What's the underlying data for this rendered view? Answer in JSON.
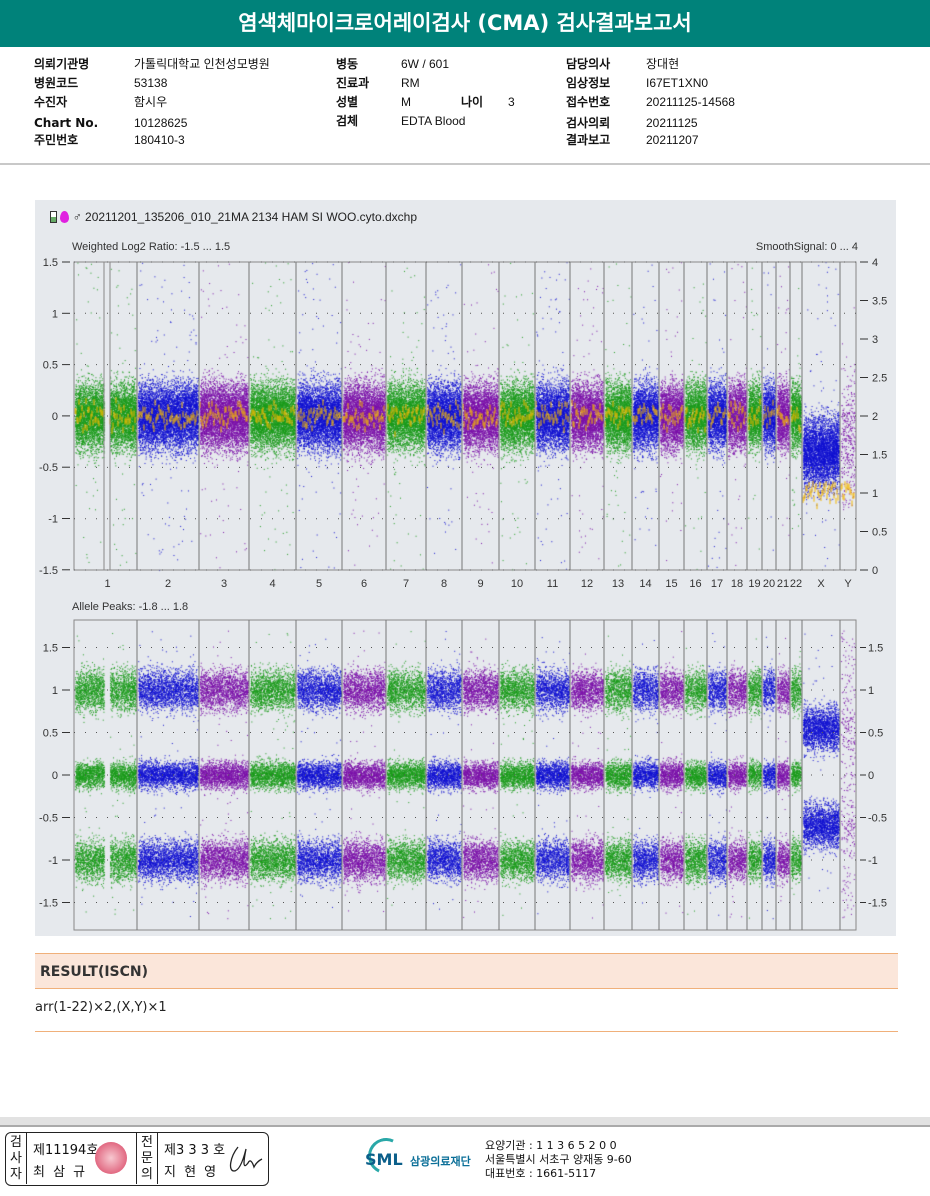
{
  "title": "염색체마이크로어레이검사 (CMA) 검사결과보고서",
  "info": {
    "col1": [
      {
        "k": "의뢰기관명",
        "v": "가톨릭대학교 인천성모병원"
      },
      {
        "k": "병원코드",
        "v": "53138"
      },
      {
        "k": "수진자",
        "v": "함시우"
      },
      {
        "k": "Chart No.",
        "v": "10128625"
      },
      {
        "k": "주민번호",
        "v": "180410-3"
      }
    ],
    "col2": [
      {
        "k": "병동",
        "v": "6W / 601"
      },
      {
        "k": "진료과",
        "v": "RM"
      },
      {
        "k": "성별",
        "v": "M"
      },
      {
        "k": "검체",
        "v": "EDTA Blood"
      }
    ],
    "age": {
      "k": "나이",
      "v": "3"
    },
    "col3": [
      {
        "k": "담당의사",
        "v": "장대현"
      },
      {
        "k": "임상정보",
        "v": "I67ET1XN0"
      },
      {
        "k": "접수번호",
        "v": "20211125-14568"
      },
      {
        "k": "검사의뢰",
        "v": "20211125"
      },
      {
        "k": "결과보고",
        "v": "20211207"
      }
    ]
  },
  "chart": {
    "filename": "20211201_135206_010_21MA 2134 HAM SI WOO.cyto.dxchp",
    "top_label": "Weighted Log2 Ratio: -1.5 ... 1.5",
    "top_right_label": "SmoothSignal: 0 ... 4",
    "top_left_ticks": [
      "1.5",
      "1",
      "0.5",
      "0",
      "-0.5",
      "-1",
      "-1.5"
    ],
    "top_right_ticks": [
      "4",
      "3.5",
      "3",
      "2.5",
      "2",
      "1.5",
      "1",
      "0.5",
      "0"
    ],
    "bottom_label": "Allele Peaks: -1.8 ... 1.8",
    "bottom_ticks": [
      "1.5",
      "1",
      "0.5",
      "0",
      "-0.5",
      "-1",
      "-1.5"
    ],
    "chromosomes": [
      "1",
      "2",
      "3",
      "4",
      "5",
      "6",
      "7",
      "8",
      "9",
      "10",
      "11",
      "12",
      "13",
      "14",
      "15",
      "16",
      "17",
      "18",
      "19",
      "20",
      "21",
      "22",
      "X",
      "Y"
    ],
    "colors": {
      "green": "#1a9a1a",
      "blue": "#1010d0",
      "purple": "#7a10a8",
      "smooth": "#f5b800"
    }
  },
  "result": {
    "heading": "RESULT(ISCN)",
    "value": "arr(1-22)×2,(X,Y)×1"
  },
  "footer": {
    "inspector_label": "검사자",
    "inspector_no": "제11194호",
    "inspector_name": "최 삼 규",
    "specialist_label": "전문의",
    "specialist_no": "제3 3 3 호",
    "specialist_name": "지 현 영",
    "logo": "SML",
    "org": "삼광의료재단",
    "line1": "요양기관 : 1 1 3 6 5 2 0 0",
    "line2": "서울특별시 서초구 양재동 9-60",
    "line3": "대표번호 : 1661-5117"
  }
}
